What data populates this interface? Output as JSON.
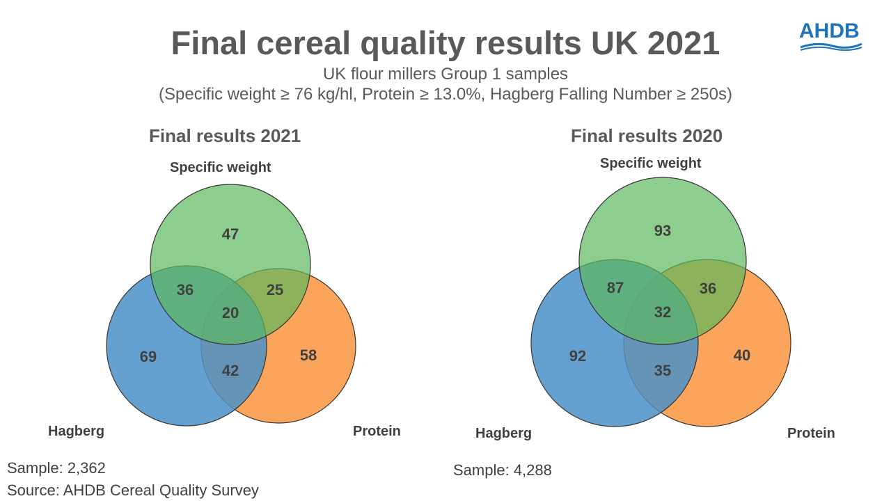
{
  "title": "Final cereal quality results UK 2021",
  "subtitle_line1": "UK flour millers Group 1 samples",
  "subtitle_line2": "(Specific weight ≥ 76 kg/hl, Protein ≥ 13.0%, Hagberg Falling Number ≥ 250s)",
  "logo": {
    "text": "AHDB",
    "color": "#1c74bc"
  },
  "colors": {
    "specific_weight": "#5cb85c",
    "hagberg": "#4a90c8",
    "protein": "#f9953e"
  },
  "panels": [
    {
      "title": "Final results 2021",
      "labels": {
        "specific_weight": "Specific weight",
        "hagberg": "Hagberg",
        "protein": "Protein"
      },
      "regions": {
        "sw_only": "47",
        "sw_hagberg": "36",
        "sw_protein": "25",
        "all_three": "20",
        "hagberg_only": "69",
        "protein_only": "58",
        "hagberg_protein": "42"
      },
      "sample": "Sample: 2,362"
    },
    {
      "title": "Final results 2020",
      "labels": {
        "specific_weight": "Specific weight",
        "hagberg": "Hagberg",
        "protein": "Protein"
      },
      "regions": {
        "sw_only": "93",
        "sw_hagberg": "87",
        "sw_protein": "36",
        "all_three": "32",
        "hagberg_only": "92",
        "protein_only": "40",
        "hagberg_protein": "35"
      },
      "sample": "Sample: 4,288"
    }
  ],
  "source": "Source: AHDB Cereal Quality Survey"
}
